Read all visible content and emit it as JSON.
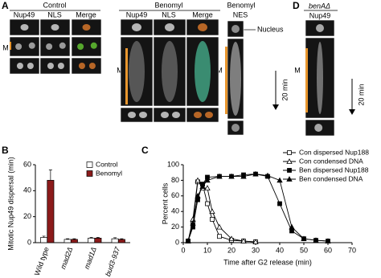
{
  "panel_a": {
    "label": "A",
    "control": {
      "title": "Control",
      "columns": [
        "Nup49",
        "NLS",
        "Merge"
      ],
      "row_label": "M"
    },
    "benomyl": {
      "title": "Benomyl",
      "columns": [
        "Nup49",
        "NLS",
        "Merge"
      ],
      "row_label": "M"
    },
    "benomyl_nes": {
      "title": "Benomyl",
      "column": "NES",
      "callout": "Nucleus",
      "row_label": "M",
      "scale": "20 min"
    }
  },
  "panel_d": {
    "label": "D",
    "strain": "benAΔ",
    "column": "Nup49",
    "row_label": "M",
    "scale": "20 min"
  },
  "panel_b_label": "B",
  "panel_c_label": "C",
  "chart_data": [
    {
      "type": "bar",
      "ylabel": "Mitotic Nup49 dispersal (min)",
      "categories": [
        "Wild type",
        "mad2Δ",
        "mad1Δ",
        "bud3-937"
      ],
      "series": [
        {
          "name": "Control",
          "color": "#ffffff",
          "values": [
            4,
            2.5,
            3.5,
            3
          ],
          "errors": [
            1,
            0.5,
            0.5,
            0.8
          ]
        },
        {
          "name": "Benomyl",
          "color": "#8b1a1a",
          "values": [
            48,
            2.5,
            3.5,
            2.5
          ],
          "errors": [
            8,
            0.5,
            0.5,
            0.5
          ]
        }
      ],
      "ylim": [
        0,
        60
      ],
      "yticks": [
        0,
        20,
        40,
        60
      ]
    },
    {
      "type": "line",
      "ylabel": "Percent cells",
      "xlabel": "Time after G2 release (min)",
      "series": [
        {
          "name": "Con dispersed Nup188",
          "color": "#000000",
          "marker": "square",
          "filled": false,
          "x": [
            2,
            4,
            6,
            8,
            10,
            12,
            15,
            20,
            25,
            30
          ],
          "values": [
            2,
            25,
            78,
            75,
            50,
            30,
            8,
            3,
            2,
            1
          ]
        },
        {
          "name": "Con condensed DNA",
          "color": "#000000",
          "marker": "triangle",
          "filled": false,
          "x": [
            2,
            4,
            6,
            8,
            10,
            12,
            15,
            20,
            25,
            30
          ],
          "values": [
            2,
            30,
            80,
            70,
            70,
            40,
            20,
            5,
            2,
            1
          ]
        },
        {
          "name": "Ben dispersed Nup188",
          "color": "#000000",
          "marker": "square",
          "filled": true,
          "x": [
            2,
            4,
            6,
            8,
            10,
            15,
            20,
            25,
            30,
            35,
            40,
            45,
            50,
            55,
            60
          ],
          "values": [
            2,
            20,
            55,
            75,
            84,
            85,
            85,
            87,
            88,
            85,
            50,
            15,
            5,
            3,
            2
          ]
        },
        {
          "name": "Ben condensed DNA",
          "color": "#000000",
          "marker": "triangle",
          "filled": true,
          "x": [
            2,
            4,
            6,
            8,
            10,
            15,
            20,
            25,
            30,
            35,
            40,
            45,
            50,
            55,
            60
          ],
          "values": [
            2,
            25,
            60,
            72,
            80,
            85,
            85,
            85,
            88,
            86,
            80,
            20,
            5,
            3,
            2
          ]
        }
      ],
      "xlim": [
        0,
        70
      ],
      "xticks": [
        0,
        10,
        20,
        30,
        40,
        50,
        60,
        70
      ],
      "ylim": [
        0,
        100
      ],
      "yticks": [
        0,
        20,
        40,
        60,
        80,
        100
      ]
    }
  ]
}
